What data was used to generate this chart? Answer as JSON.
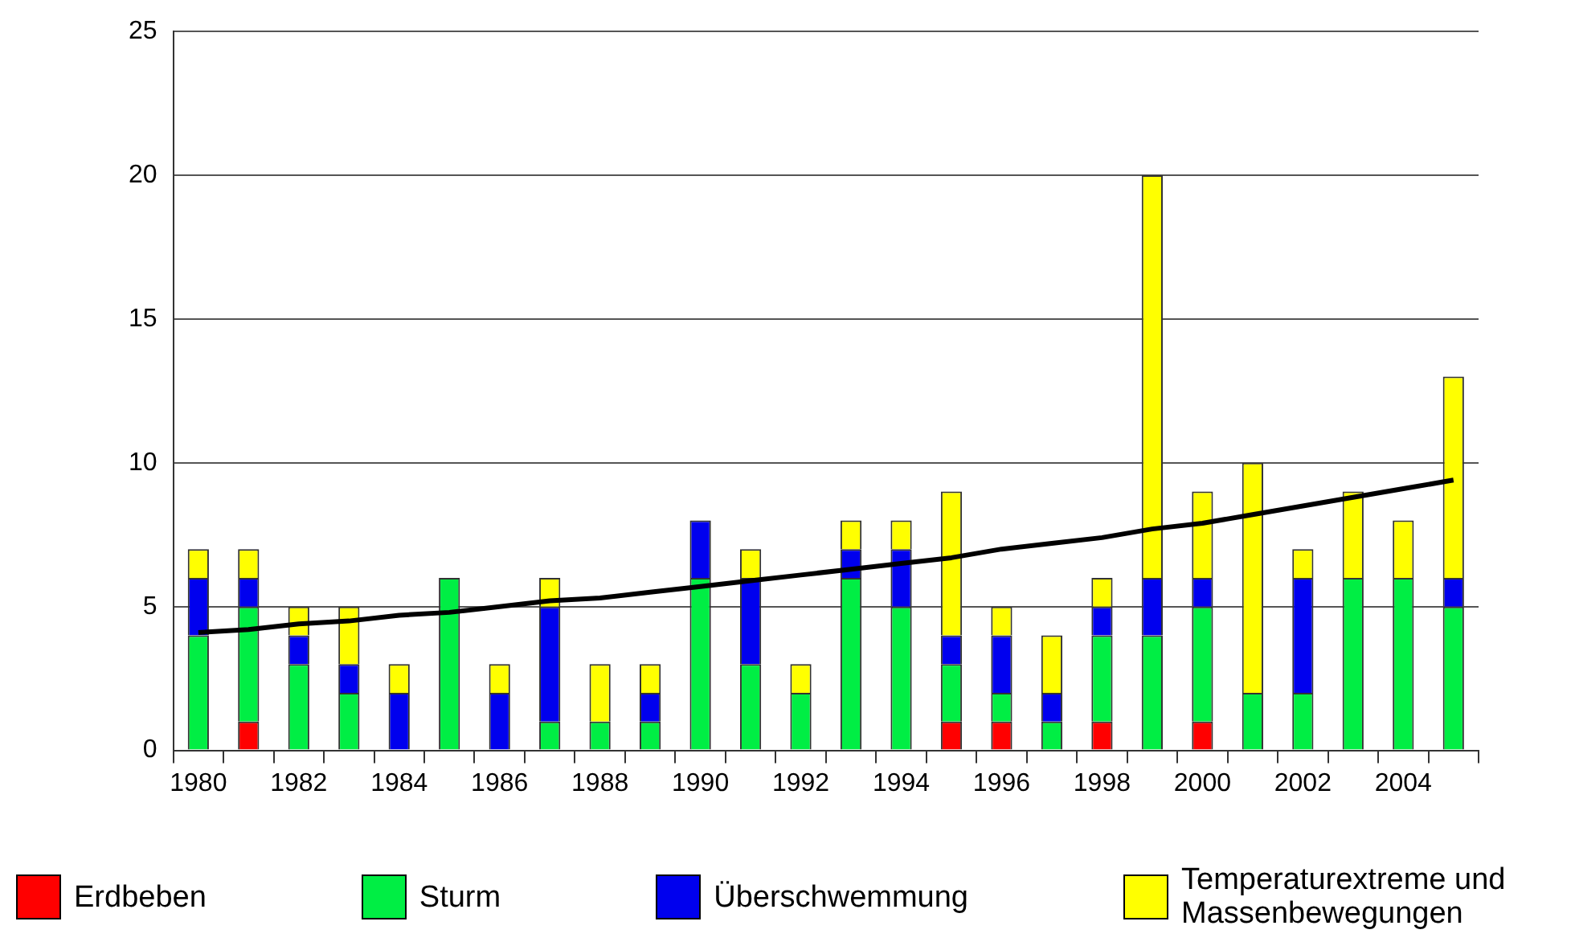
{
  "chart_data": {
    "type": "bar",
    "stacked": true,
    "categories": [
      "1980",
      null,
      "1982",
      null,
      "1984",
      null,
      "1986",
      null,
      "1988",
      null,
      "1990",
      null,
      "1992",
      null,
      "1994",
      null,
      "1996",
      null,
      "1998",
      null,
      "2000",
      null,
      "2002",
      null,
      "2004",
      null
    ],
    "series": [
      {
        "name": "Erdbeben",
        "color": "#ff0000",
        "values": [
          0,
          1,
          0,
          0,
          0,
          0,
          0,
          0,
          0,
          0,
          0,
          0,
          0,
          0,
          0,
          1,
          1,
          0,
          1,
          0,
          1,
          0,
          0,
          0,
          0,
          0
        ]
      },
      {
        "name": "Sturm",
        "color": "#00ee44",
        "values": [
          4,
          4,
          3,
          2,
          0,
          6,
          0,
          1,
          1,
          1,
          6,
          3,
          2,
          6,
          5,
          2,
          1,
          1,
          3,
          4,
          4,
          2,
          2,
          6,
          6,
          5
        ]
      },
      {
        "name": "Überschwemmung",
        "color": "#0000ee",
        "values": [
          2,
          1,
          1,
          1,
          2,
          0,
          2,
          4,
          0,
          1,
          2,
          3,
          0,
          1,
          2,
          1,
          2,
          1,
          1,
          2,
          1,
          0,
          4,
          0,
          0,
          1
        ]
      },
      {
        "name": "Temperaturextreme und Massenbewegungen",
        "color": "#ffff00",
        "values": [
          1,
          1,
          1,
          2,
          1,
          0,
          1,
          1,
          2,
          1,
          0,
          1,
          1,
          1,
          1,
          5,
          1,
          2,
          1,
          14,
          3,
          8,
          1,
          3,
          2,
          7
        ]
      },
      {
        "type": "line",
        "color": "#000000",
        "values": [
          4.1,
          4.2,
          4.4,
          4.5,
          4.7,
          4.8,
          5.0,
          5.2,
          5.3,
          5.5,
          5.7,
          5.9,
          6.1,
          6.3,
          6.5,
          6.7,
          7.0,
          7.2,
          7.4,
          7.7,
          7.9,
          8.2,
          8.5,
          8.8,
          9.1,
          9.4
        ]
      }
    ],
    "ylim": [
      0,
      25
    ],
    "yticks": [
      0,
      5,
      10,
      15,
      20,
      25
    ],
    "grid": "y",
    "legend": "bottom"
  }
}
